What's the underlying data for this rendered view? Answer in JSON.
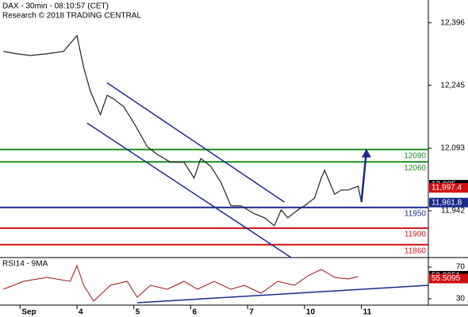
{
  "chart_data": {
    "type": "line",
    "title": "DAX - 30min - 08:10:57 (CET)",
    "subtitle": "Research © 2018 TRADING CENTRAL",
    "xlim": [
      0,
      128
    ],
    "xticks": [
      {
        "value": 6,
        "label": "Sep"
      },
      {
        "value": 23,
        "label": "4"
      },
      {
        "value": 40,
        "label": "5"
      },
      {
        "value": 57,
        "label": "6"
      },
      {
        "value": 74,
        "label": "7"
      },
      {
        "value": 91,
        "label": "10"
      },
      {
        "value": 108,
        "label": "11"
      }
    ],
    "ylim": [
      11829,
      12451
    ],
    "yticks": [
      {
        "value": 12396,
        "label": "12,396"
      },
      {
        "value": 12245,
        "label": "12,245"
      },
      {
        "value": 12093,
        "label": "12,093"
      },
      {
        "value": 11942,
        "label": "11,942"
      }
    ],
    "series": [
      {
        "name": "DAX",
        "color": "#222222",
        "x": [
          1,
          5,
          9,
          14,
          19,
          23,
          25,
          27,
          30,
          32,
          34,
          37,
          40,
          44,
          47,
          51,
          55,
          58,
          60,
          63,
          66,
          69,
          72,
          76,
          79,
          82,
          84,
          86,
          89,
          91,
          94,
          96,
          97,
          100,
          102,
          104,
          107,
          108
        ],
        "values": [
          12327,
          12321,
          12317,
          12321,
          12327,
          12365,
          12288,
          12231,
          12174,
          12221,
          12212,
          12193,
          12154,
          12097,
          12078,
          12059,
          12059,
          12021,
          12068,
          12049,
          12011,
          11954,
          11954,
          11935,
          11925,
          11906,
          11944,
          11925,
          11944,
          11954,
          11973,
          12021,
          12040,
          11982,
          11992,
          11992,
          12001,
          11963
        ]
      }
    ],
    "projection": {
      "color": "#1a2a8c",
      "x": [
        108,
        109.5
      ],
      "values": [
        11963,
        12088
      ]
    },
    "trendlines": [
      {
        "color": "#1a2a8c",
        "x": [
          32,
          85
        ],
        "values": [
          12251,
          11963
        ]
      },
      {
        "color": "#1a2a8c",
        "x": [
          26,
          87
        ],
        "values": [
          12154,
          11829
        ]
      }
    ],
    "levels": {
      "values": [
        12090,
        12060,
        11950,
        11900,
        11860
      ],
      "colors": [
        "#1a8c1a",
        "#1a8c1a",
        "#1a2a8c",
        "#d01010",
        "#d01010"
      ]
    },
    "price_tags": [
      {
        "value": 12005,
        "label": "12,005",
        "color": "#000000"
      },
      {
        "value": 11997.4,
        "label": "11,997.4",
        "color": "#d01010"
      },
      {
        "value": 11961.8,
        "label": "11,961.8",
        "color": "#1a2a8c"
      }
    ],
    "rsi": {
      "title": "RSI14 - 9MA",
      "ylim": [
        22,
        82
      ],
      "yticks": [
        30,
        70
      ],
      "color": "#a01010",
      "x": [
        1,
        7,
        14,
        21,
        23,
        25,
        28,
        33,
        38,
        41,
        45,
        50,
        55,
        59,
        64,
        69,
        73,
        78,
        83,
        88,
        92,
        96,
        100,
        104,
        107
      ],
      "values": [
        42,
        52,
        57,
        52,
        72,
        47,
        27,
        47,
        52,
        32,
        47,
        42,
        52,
        42,
        52,
        42,
        47,
        37,
        52,
        47,
        59,
        67,
        57,
        55,
        58
      ],
      "trendline": {
        "color": "#1a2a8c",
        "x": [
          41,
          128
        ],
        "values": [
          25,
          47
        ]
      },
      "tags": [
        {
          "value": 59.0951,
          "label": "59.0951",
          "color": "#000000"
        },
        {
          "value": 55.5095,
          "label": "55.5095",
          "color": "#d01010"
        }
      ]
    }
  }
}
